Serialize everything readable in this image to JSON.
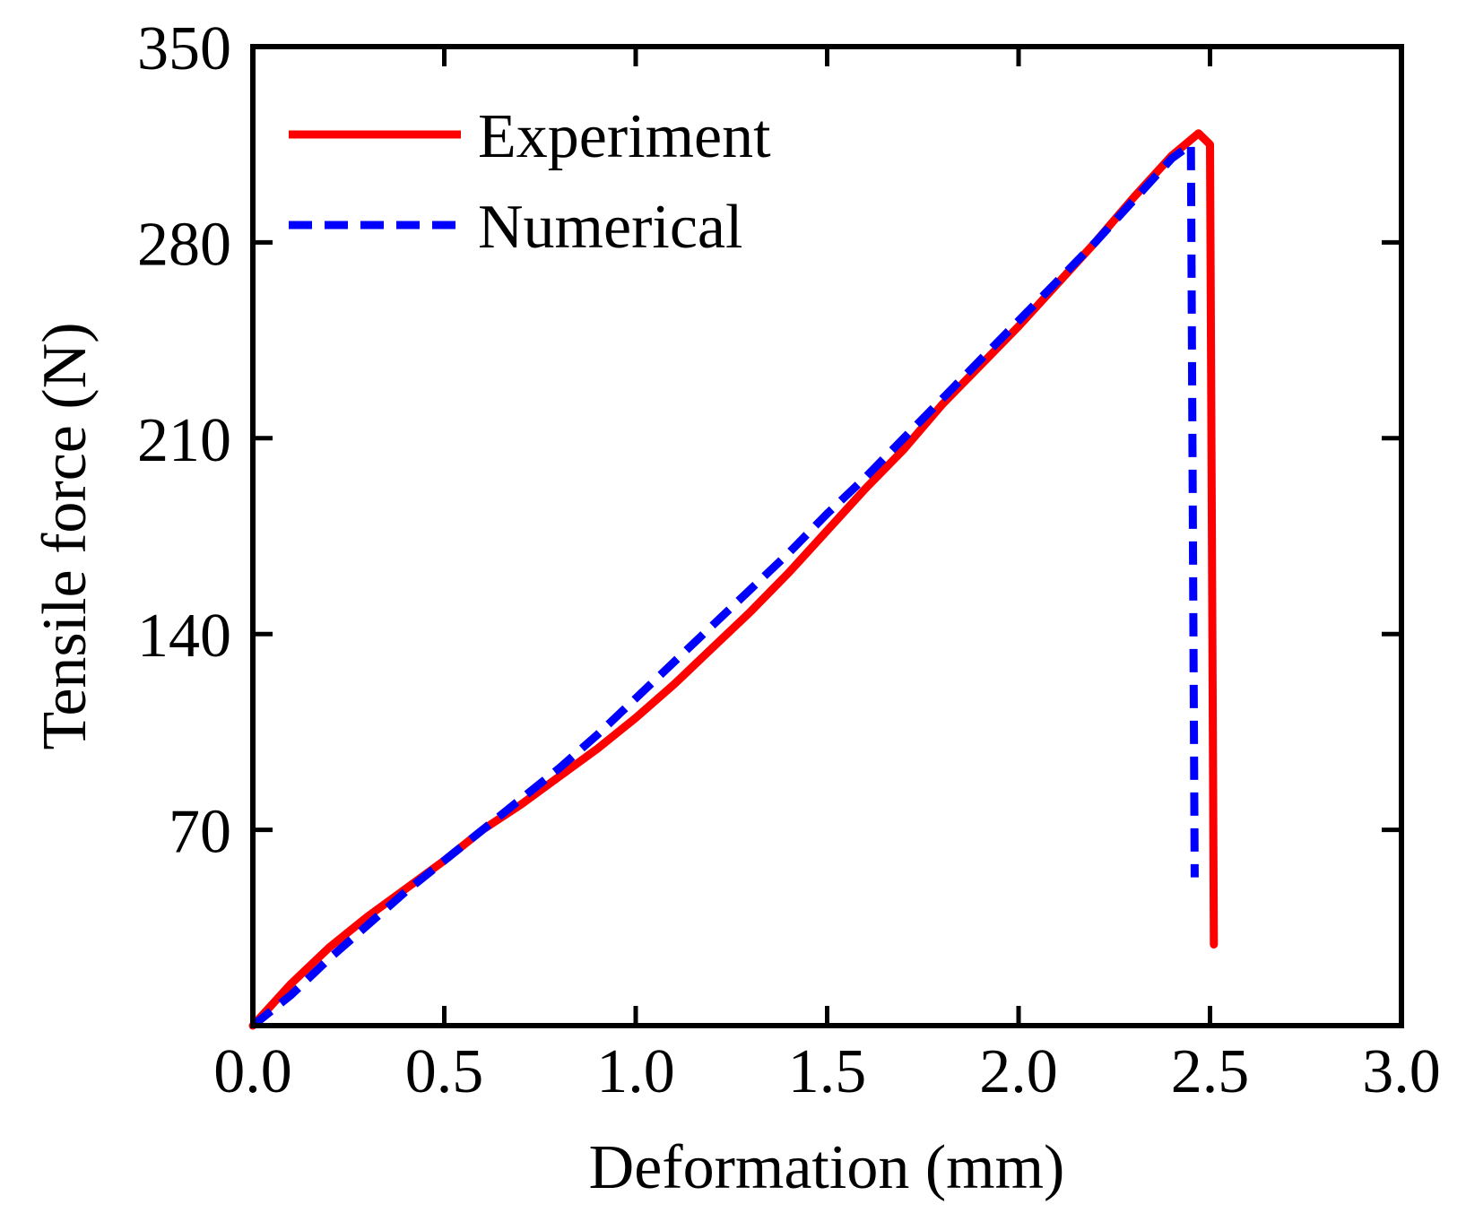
{
  "chart_data": {
    "type": "line",
    "title": "",
    "xlabel": "Deformation (mm)",
    "ylabel": "Tensile force (N)",
    "xlim": [
      0.0,
      3.0
    ],
    "ylim": [
      0,
      350
    ],
    "xticks": [
      0.0,
      0.5,
      1.0,
      1.5,
      2.0,
      2.5,
      3.0
    ],
    "xtick_labels": [
      "0.0",
      "0.5",
      "1.0",
      "1.5",
      "2.0",
      "2.5",
      "3.0"
    ],
    "yticks": [
      70,
      140,
      210,
      280,
      350
    ],
    "ytick_labels": [
      "70",
      "140",
      "210",
      "280",
      "350"
    ],
    "grid": false,
    "legend_position": "top-left",
    "series": [
      {
        "name": "Experiment",
        "color": "#ff0000",
        "style": "solid",
        "x": [
          0.0,
          0.1,
          0.2,
          0.3,
          0.4,
          0.5,
          0.6,
          0.7,
          0.8,
          0.9,
          1.0,
          1.1,
          1.2,
          1.3,
          1.4,
          1.5,
          1.6,
          1.7,
          1.8,
          1.9,
          2.0,
          2.1,
          2.2,
          2.3,
          2.4,
          2.47,
          2.5,
          2.51
        ],
        "y": [
          0,
          15,
          28,
          39,
          49,
          59,
          70,
          79,
          89,
          99,
          110,
          122,
          135,
          148,
          162,
          177,
          192,
          206,
          222,
          236,
          250,
          265,
          280,
          296,
          311,
          319,
          315,
          29
        ]
      },
      {
        "name": "Numerical",
        "color": "#0000ff",
        "style": "dashed",
        "x": [
          0.0,
          0.1,
          0.2,
          0.3,
          0.4,
          0.5,
          0.6,
          0.7,
          0.8,
          0.9,
          1.0,
          1.1,
          1.2,
          1.3,
          1.4,
          1.5,
          1.6,
          1.7,
          1.8,
          1.9,
          2.0,
          2.1,
          2.2,
          2.3,
          2.4,
          2.45,
          2.46
        ],
        "y": [
          0,
          11,
          24,
          36,
          48,
          59,
          70,
          81,
          92,
          104,
          117,
          130,
          143,
          156,
          169,
          183,
          196,
          210,
          224,
          238,
          252,
          266,
          280,
          295,
          310,
          315,
          53
        ]
      }
    ]
  }
}
